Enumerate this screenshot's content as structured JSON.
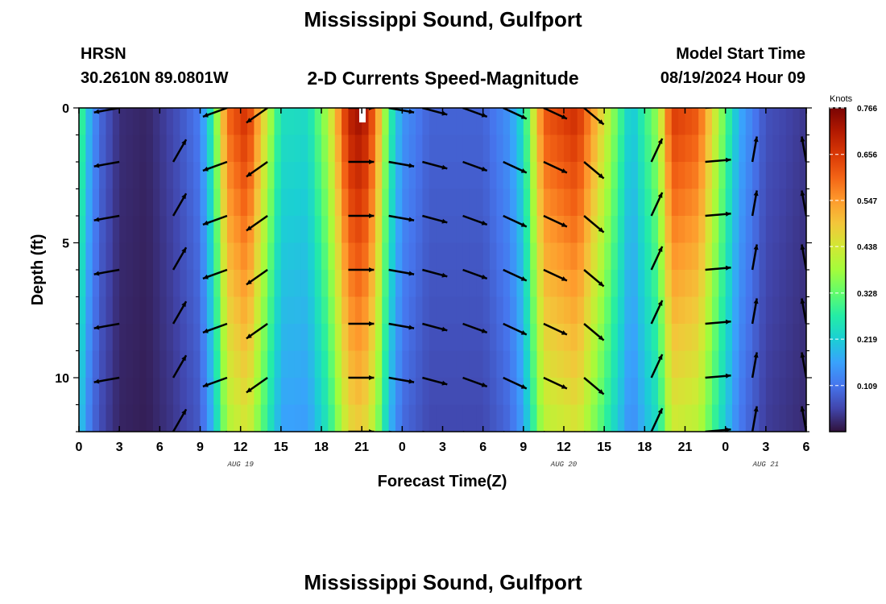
{
  "header": {
    "title": "Mississippi Sound, Gulfport",
    "station": "HRSN",
    "coords": "30.2610N  89.0801W",
    "subtitle": "2-D Currents Speed-Magnitude",
    "model_start_label": "Model Start Time",
    "model_start_time": "08/19/2024 Hour 09"
  },
  "footer": {
    "title": "Mississippi Sound, Gulfport"
  },
  "chart_data": {
    "type": "heatmap",
    "title": "2-D Currents Speed-Magnitude",
    "xlabel": "Forecast Time(Z)",
    "ylabel": "Depth (ft)",
    "x_hours_range": [
      0,
      54
    ],
    "ylim": [
      0,
      12
    ],
    "y_ticks": [
      0,
      5,
      10
    ],
    "x_tick_labels": [
      "0",
      "3",
      "6",
      "9",
      "12",
      "15",
      "18",
      "21",
      "0",
      "3",
      "6",
      "9",
      "12",
      "15",
      "18",
      "21",
      "0",
      "3",
      "6"
    ],
    "date_labels": [
      {
        "hour": 12,
        "text": "AUG 19"
      },
      {
        "hour": 36,
        "text": "AUG 20"
      },
      {
        "hour": 51,
        "text": "AUG 21"
      }
    ],
    "colorbar": {
      "units": "Knots",
      "ticks": [
        0.766,
        0.656,
        0.547,
        0.438,
        0.328,
        0.219,
        0.109
      ],
      "max": 0.766,
      "min": 0.0,
      "colors": [
        "#30123b",
        "#4145ab",
        "#4675ed",
        "#39a2fc",
        "#1bcfd4",
        "#24eca6",
        "#61fc6c",
        "#a4fc3b",
        "#d1e834",
        "#f3c63a",
        "#fe9b2d",
        "#f36315",
        "#d93806",
        "#b11901",
        "#7a0403"
      ]
    },
    "speed_profile": [
      {
        "hour": 0,
        "speed": 0.35
      },
      {
        "hour": 0.5,
        "speed": 0.22
      },
      {
        "hour": 1.5,
        "speed": 0.1
      },
      {
        "hour": 3,
        "speed": 0.03
      },
      {
        "hour": 5,
        "speed": 0.02
      },
      {
        "hour": 7,
        "speed": 0.06
      },
      {
        "hour": 9,
        "speed": 0.12
      },
      {
        "hour": 10,
        "speed": 0.3
      },
      {
        "hour": 11,
        "speed": 0.6
      },
      {
        "hour": 12.5,
        "speed": 0.68
      },
      {
        "hour": 14,
        "speed": 0.42
      },
      {
        "hour": 15,
        "speed": 0.25
      },
      {
        "hour": 17,
        "speed": 0.24
      },
      {
        "hour": 18.5,
        "speed": 0.4
      },
      {
        "hour": 20,
        "speed": 0.7
      },
      {
        "hour": 21,
        "speed": 0.74
      },
      {
        "hour": 22,
        "speed": 0.6
      },
      {
        "hour": 23,
        "speed": 0.3
      },
      {
        "hour": 24,
        "speed": 0.15
      },
      {
        "hour": 26,
        "speed": 0.09
      },
      {
        "hour": 30,
        "speed": 0.09
      },
      {
        "hour": 32,
        "speed": 0.15
      },
      {
        "hour": 33,
        "speed": 0.25
      },
      {
        "hour": 34.5,
        "speed": 0.62
      },
      {
        "hour": 37,
        "speed": 0.68
      },
      {
        "hour": 39,
        "speed": 0.45
      },
      {
        "hour": 41,
        "speed": 0.2
      },
      {
        "hour": 43,
        "speed": 0.38
      },
      {
        "hour": 44,
        "speed": 0.66
      },
      {
        "hour": 46,
        "speed": 0.62
      },
      {
        "hour": 48,
        "speed": 0.32
      },
      {
        "hour": 49,
        "speed": 0.18
      },
      {
        "hour": 51,
        "speed": 0.07
      },
      {
        "hour": 54,
        "speed": 0.04
      }
    ],
    "arrow_depths": [
      0,
      2,
      4,
      6,
      8,
      10,
      12
    ],
    "arrow_columns": [
      {
        "hour": 0,
        "angle": 195
      },
      {
        "hour": 3,
        "angle": 190
      },
      {
        "hour": 7,
        "angle": 60
      },
      {
        "hour": 11,
        "angle": 200
      },
      {
        "hour": 14,
        "angle": 215
      },
      {
        "hour": 20,
        "angle": 0
      },
      {
        "hour": 23,
        "angle": 350
      },
      {
        "hour": 25.5,
        "angle": 345
      },
      {
        "hour": 28.5,
        "angle": 340
      },
      {
        "hour": 31.5,
        "angle": 335
      },
      {
        "hour": 34.5,
        "angle": 335
      },
      {
        "hour": 37.5,
        "angle": 320
      },
      {
        "hour": 42.5,
        "angle": 65
      },
      {
        "hour": 46.5,
        "angle": 5
      },
      {
        "hour": 50,
        "angle": 80
      },
      {
        "hour": 54,
        "angle": 100
      }
    ]
  }
}
